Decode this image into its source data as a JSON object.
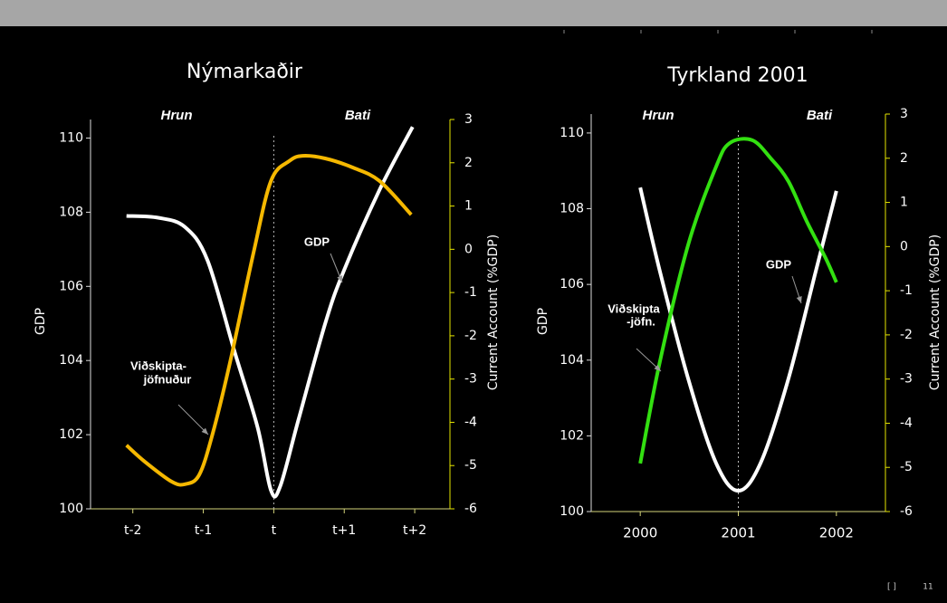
{
  "chart_data": [
    {
      "type": "line",
      "title": "Nýmarkaðir",
      "xlim": [
        -2.6,
        2.5
      ],
      "xticks": [
        {
          "value": -2,
          "label": "t-2"
        },
        {
          "value": -1,
          "label": "t-1"
        },
        {
          "value": 0,
          "label": "t"
        },
        {
          "value": 1,
          "label": "t+1"
        },
        {
          "value": 2,
          "label": "t+2"
        }
      ],
      "ylim": [
        100,
        110.5
      ],
      "yticks": [
        100,
        102,
        104,
        106,
        108,
        110
      ],
      "y2lim": [
        -6,
        3
      ],
      "y2ticks": [
        -6,
        -5,
        -4,
        -3,
        -2,
        -1,
        0,
        1,
        2,
        3
      ],
      "ylabel": "GDP",
      "y2label": "Current Account (%GDP)",
      "vline": 0,
      "annotations": [
        "Hrun",
        "Bati",
        "GDP",
        "Viðskipta-",
        "jöfnuður"
      ],
      "series": [
        {
          "name": "GDP",
          "color": "#ffffff",
          "x": [
            -2.09,
            -1.64,
            -1.26,
            -0.94,
            -0.55,
            -0.23,
            -0.04,
            0.09,
            0.35,
            0.73,
            0.99,
            1.5,
            1.97
          ],
          "values": [
            107.9,
            107.85,
            107.6,
            106.7,
            104.2,
            102.2,
            100.5,
            100.6,
            102.4,
            105,
            106.4,
            108.6,
            110.3
          ]
        },
        {
          "name": "Viðskiptajöfnuður",
          "color": "#f5b800",
          "axis": "y2",
          "x": [
            -2.09,
            -1.83,
            -1.45,
            -1.26,
            -1.06,
            -0.87,
            -0.62,
            -0.29,
            -0.04,
            0.22,
            0.41,
            0.73,
            1.12,
            1.5,
            1.95
          ],
          "values": [
            -4.53,
            -4.91,
            -5.37,
            -5.43,
            -5.22,
            -4.28,
            -2.61,
            -0.1,
            1.58,
            2.04,
            2.16,
            2.1,
            1.89,
            1.58,
            0.8
          ]
        }
      ]
    },
    {
      "type": "line",
      "title": "Tyrkland 2001",
      "xlim": [
        1999.5,
        2002.5
      ],
      "xticks": [
        2000,
        2001,
        2002
      ],
      "ylim": [
        100,
        110.5
      ],
      "yticks": [
        100,
        102,
        104,
        106,
        108,
        110
      ],
      "y2lim": [
        -6,
        3
      ],
      "y2ticks": [
        -6,
        -5,
        -4,
        -3,
        -2,
        -1,
        0,
        1,
        2,
        3
      ],
      "ylabel": "GDP",
      "y2label": "Current Account (%GDP)",
      "vline": 2001,
      "annotations": [
        "Hrun",
        "Bati",
        "GDP",
        "Viðskipta",
        "-jöfn."
      ],
      "series": [
        {
          "name": "GDP",
          "color": "#ffffff",
          "x": [
            2000.0,
            2000.2,
            2000.49,
            2000.77,
            2001.0,
            2001.23,
            2001.51,
            2001.79,
            2002.0
          ],
          "values": [
            108.56,
            106.35,
            103.5,
            101.3,
            100.55,
            101.3,
            103.5,
            106.35,
            108.47
          ]
        },
        {
          "name": "Viðskiptajöfn.",
          "color": "#33e011",
          "axis": "y2",
          "x": [
            2000.0,
            2000.2,
            2000.49,
            2000.77,
            2000.91,
            2001.14,
            2001.33,
            2001.51,
            2001.7,
            2001.89,
            2002.0
          ],
          "values": [
            -4.91,
            -2.61,
            0.05,
            1.79,
            2.34,
            2.41,
            2.0,
            1.48,
            0.56,
            -0.26,
            -0.81
          ]
        }
      ]
    }
  ],
  "footer": {
    "bracket": "[ ]",
    "page": "11"
  }
}
